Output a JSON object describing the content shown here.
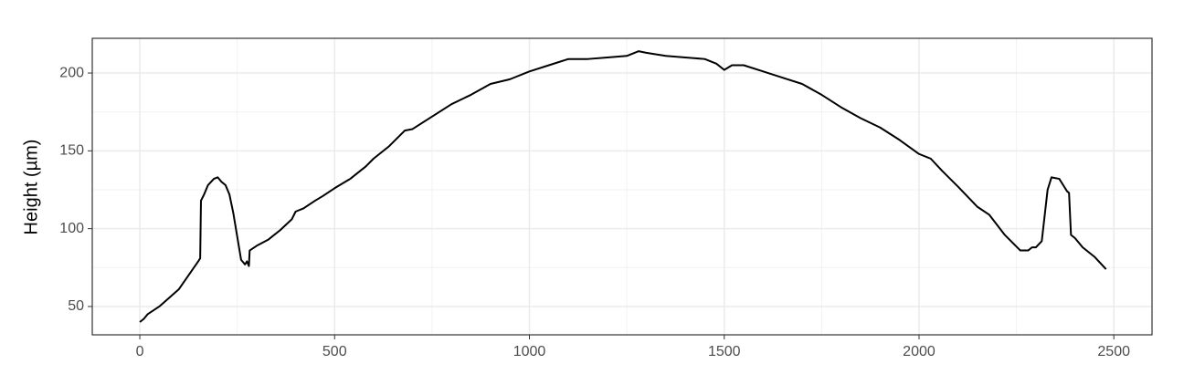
{
  "chart_data": {
    "type": "line",
    "ylabel": "Height (µm)",
    "x": [
      0,
      10,
      20,
      50,
      100,
      150,
      155,
      157,
      165,
      175,
      190,
      200,
      210,
      220,
      230,
      240,
      250,
      260,
      270,
      275,
      280,
      282,
      300,
      330,
      360,
      390,
      400,
      420,
      450,
      470,
      500,
      540,
      580,
      600,
      640,
      660,
      680,
      700,
      750,
      800,
      850,
      900,
      950,
      1000,
      1050,
      1100,
      1150,
      1200,
      1250,
      1280,
      1300,
      1350,
      1400,
      1450,
      1480,
      1500,
      1520,
      1550,
      1600,
      1650,
      1700,
      1750,
      1800,
      1850,
      1900,
      1950,
      2000,
      2030,
      2060,
      2100,
      2150,
      2180,
      2220,
      2260,
      2280,
      2290,
      2300,
      2315,
      2330,
      2340,
      2360,
      2370,
      2380,
      2385,
      2390,
      2400,
      2420,
      2450,
      2480
    ],
    "values": [
      40,
      42,
      45,
      50,
      61,
      79,
      81,
      118,
      122,
      128,
      132,
      133,
      130,
      128,
      122,
      110,
      95,
      80,
      77,
      79,
      76,
      86,
      89,
      93,
      99,
      106,
      111,
      113,
      118,
      121,
      126,
      132,
      140,
      145,
      153,
      158,
      163,
      164,
      172,
      180,
      186,
      193,
      196,
      201,
      205,
      209,
      209,
      210,
      211,
      214,
      213,
      211,
      210,
      209,
      206,
      202,
      205,
      205,
      201,
      197,
      193,
      186,
      178,
      171,
      165,
      157,
      148,
      145,
      137,
      127,
      114,
      109,
      96,
      86,
      86,
      88,
      88,
      92,
      125,
      133,
      132,
      128,
      124,
      123,
      96,
      94,
      88,
      82,
      74
    ],
    "color": "#000000",
    "xlim": [
      -122,
      2598
    ],
    "ylim": [
      31.8,
      222.3
    ],
    "xticks": [
      0,
      500,
      1000,
      1500,
      2000,
      2500
    ],
    "yticks": [
      50,
      100,
      150,
      200
    ],
    "xminorticks": [
      250,
      750,
      1250,
      1750,
      2250
    ],
    "yminorticks": [
      75,
      125,
      175
    ],
    "grid": true
  }
}
